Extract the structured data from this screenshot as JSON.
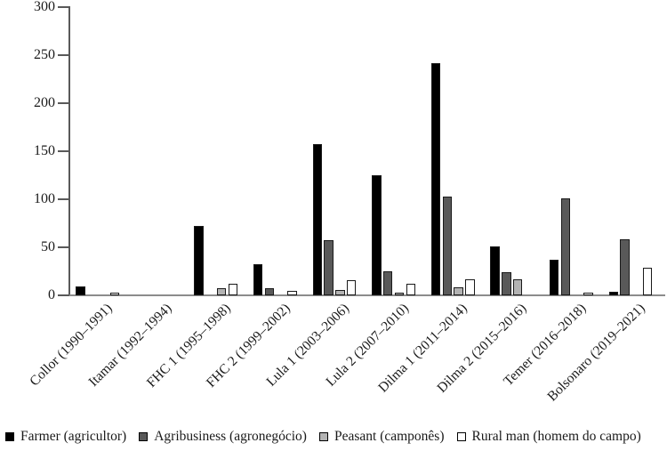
{
  "figure": {
    "background": "#ffffff",
    "axis_color": "#595959",
    "baseline_color": "#8c8c8c"
  },
  "chart_data": {
    "type": "bar",
    "title": "",
    "xlabel": "",
    "ylabel": "",
    "grid": false,
    "legend_position": "bottom-left",
    "ylim": [
      0,
      300
    ],
    "yticks": [
      0,
      50,
      100,
      150,
      200,
      250,
      300
    ],
    "categories": [
      "Collor (1990–1991)",
      "Itamar (1992–1994)",
      "FHC 1 (1995–1998)",
      "FHC 2 (1999–2002)",
      "Lula 1 (2003–2006)",
      "Lula 2 (2007–2010)",
      "Dilma 1 (2011–2014)",
      "Dilma 2 (2015–2016)",
      "Temer (2016–2018)",
      "Bolsonaro (2019–2021)"
    ],
    "series": [
      {
        "name": "Farmer (agricultor)",
        "color": "#000000",
        "values": [
          9,
          0,
          72,
          32,
          157,
          125,
          242,
          51,
          37,
          4
        ]
      },
      {
        "name": "Agribusiness (agronegócio)",
        "color": "#595959",
        "values": [
          0,
          0,
          0,
          7,
          57,
          25,
          103,
          24,
          101,
          58
        ]
      },
      {
        "name": "Peasant (camponês)",
        "color": "#b3b3b3",
        "values": [
          0,
          0,
          7,
          0,
          6,
          3,
          8,
          17,
          0,
          0
        ]
      },
      {
        "name": "Rural man (homem do campo)",
        "color": "#ffffff",
        "values": [
          3,
          0,
          12,
          5,
          16,
          12,
          17,
          0,
          3,
          29
        ]
      }
    ]
  }
}
